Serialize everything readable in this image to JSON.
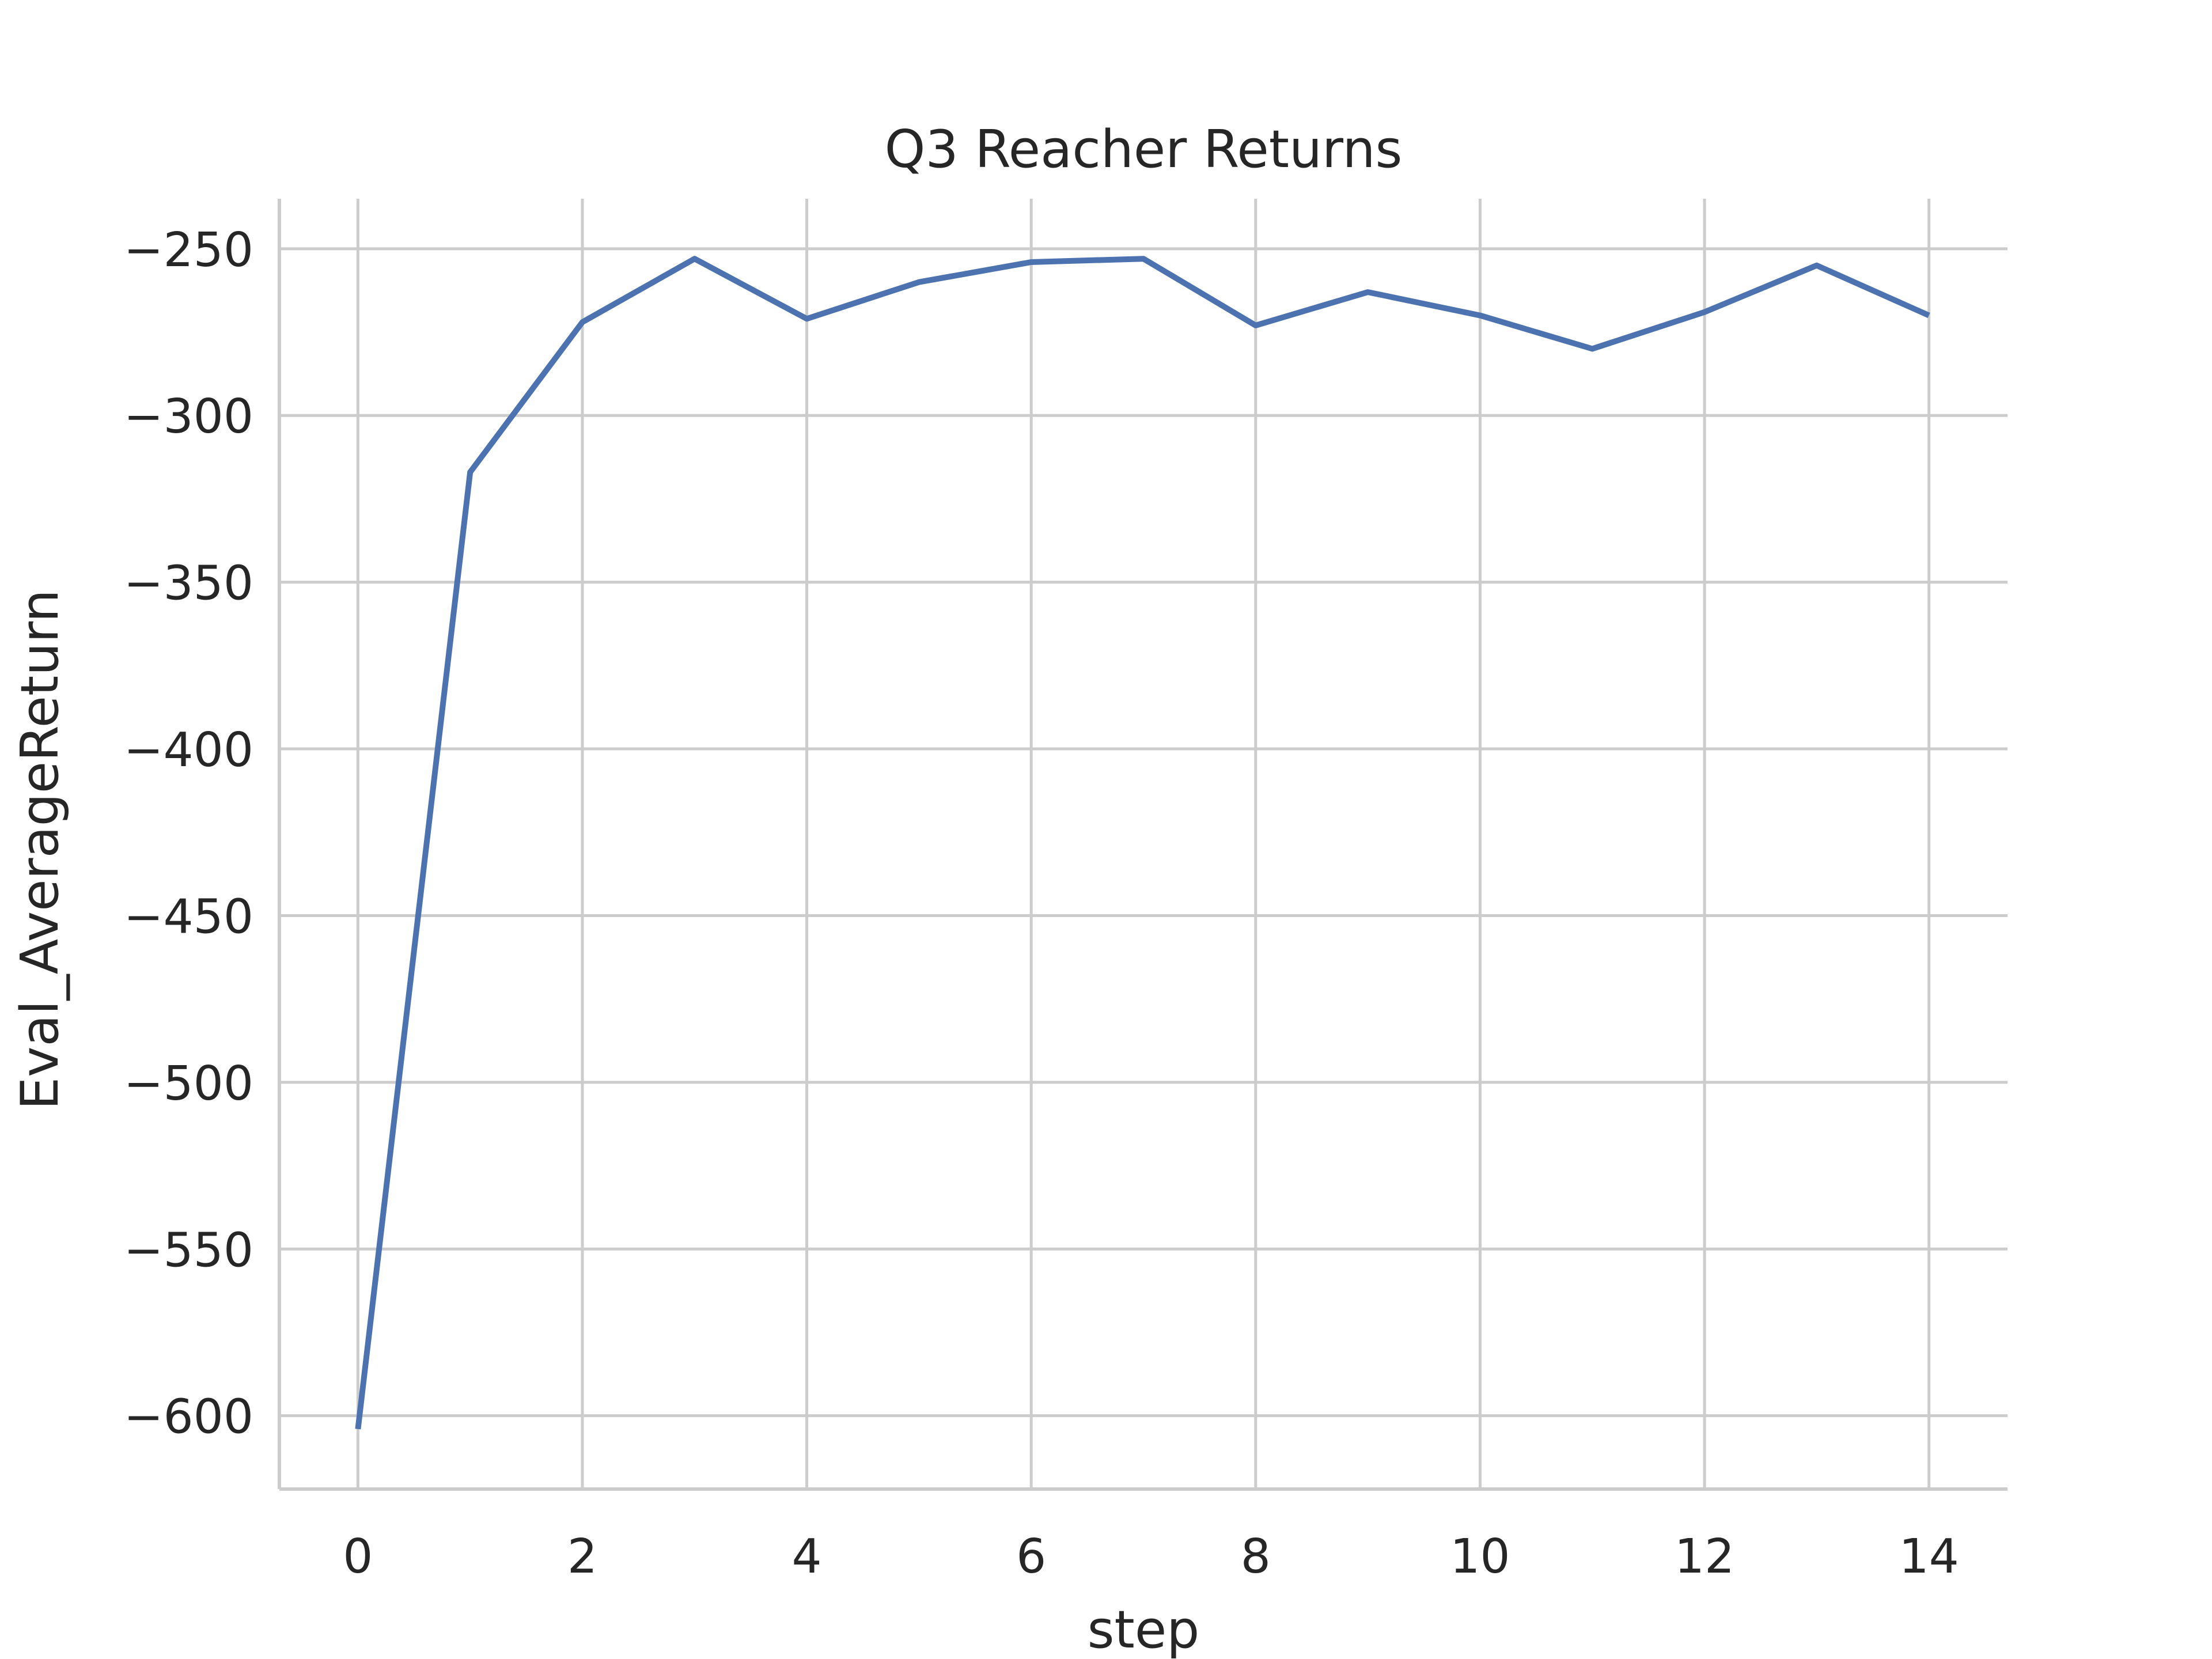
{
  "chart_data": {
    "type": "line",
    "title": "Q3 Reacher Returns",
    "xlabel": "step",
    "ylabel": "Eval_AverageReturn",
    "xlim": [
      -0.7,
      14.7
    ],
    "ylim": [
      -622,
      -235
    ],
    "x_ticks": [
      0,
      2,
      4,
      6,
      8,
      10,
      12,
      14
    ],
    "y_ticks": [
      -250,
      -300,
      -350,
      -400,
      -450,
      -500,
      -550,
      -600
    ],
    "x_tick_labels": [
      "0",
      "2",
      "4",
      "6",
      "8",
      "10",
      "12",
      "14"
    ],
    "y_tick_labels": [
      "−250",
      "−300",
      "−350",
      "−400",
      "−450",
      "−500",
      "−550",
      "−600"
    ],
    "grid": true,
    "series": [
      {
        "color": "#4c72b0",
        "x": [
          0,
          1,
          2,
          3,
          4,
          5,
          6,
          7,
          8,
          9,
          10,
          11,
          12,
          13,
          14
        ],
        "y": [
          -604,
          -317,
          -272,
          -253,
          -271,
          -260,
          -254,
          -253,
          -273,
          -263,
          -270,
          -280,
          -269,
          -255,
          -270
        ]
      }
    ]
  }
}
